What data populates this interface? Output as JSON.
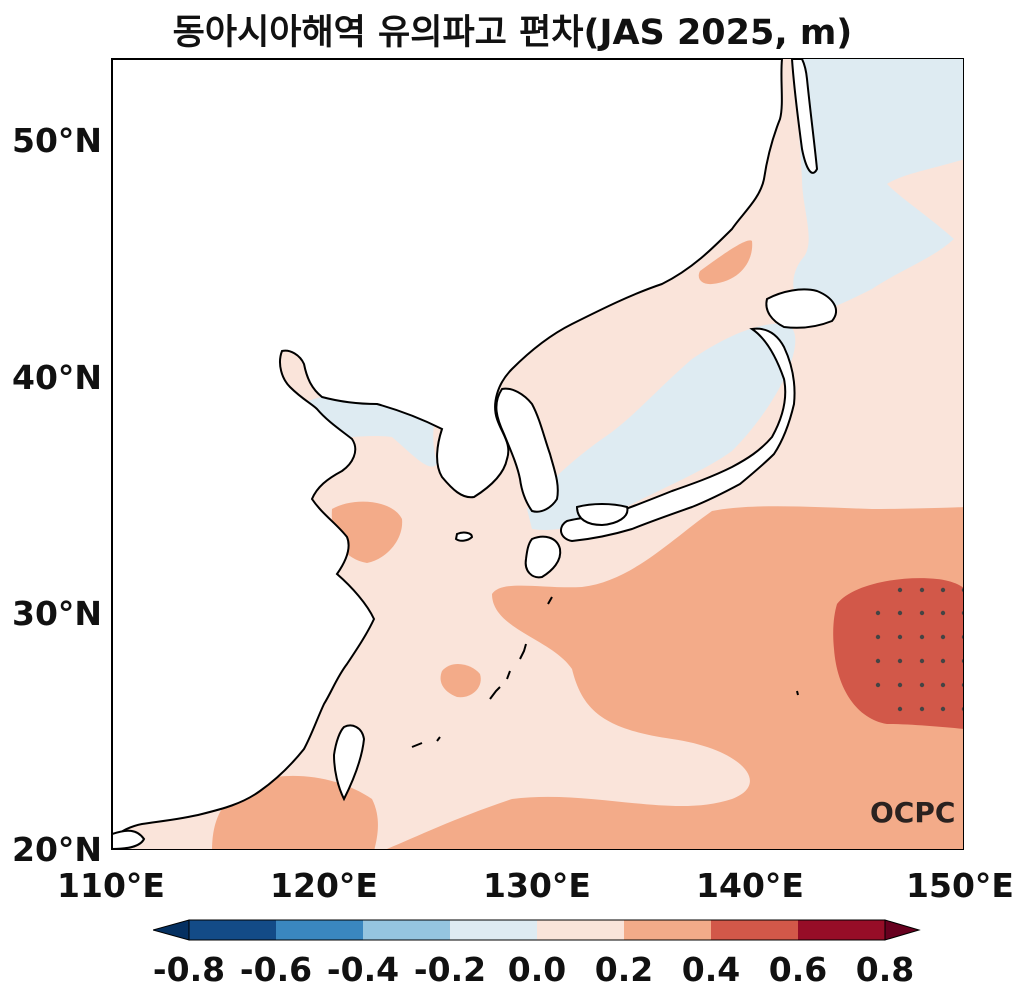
{
  "title": "동아시아해역 유의파고 편차(JAS 2025, m)",
  "map": {
    "lat_range": [
      20,
      53.5
    ],
    "lon_range": [
      110,
      150
    ],
    "y_ticks": [
      "50°N",
      "40°N",
      "30°N",
      "20°N"
    ],
    "x_ticks": [
      "110°E",
      "120°E",
      "130°E",
      "140°E",
      "150°E"
    ],
    "watermark": "OCPC",
    "land_color": "#ffffff",
    "stipple_note": "dots mark significant anomalies"
  },
  "colorbar": {
    "labels": [
      "-0.8",
      "-0.6",
      "-0.4",
      "-0.2",
      "0.0",
      "0.2",
      "0.4",
      "0.6",
      "0.8"
    ],
    "colors": [
      "#053061",
      "#134b87",
      "#3a87bf",
      "#95c5df",
      "#deebf2",
      "#fae4da",
      "#f3ab89",
      "#d25849",
      "#960d27",
      "#67001f"
    ]
  }
}
